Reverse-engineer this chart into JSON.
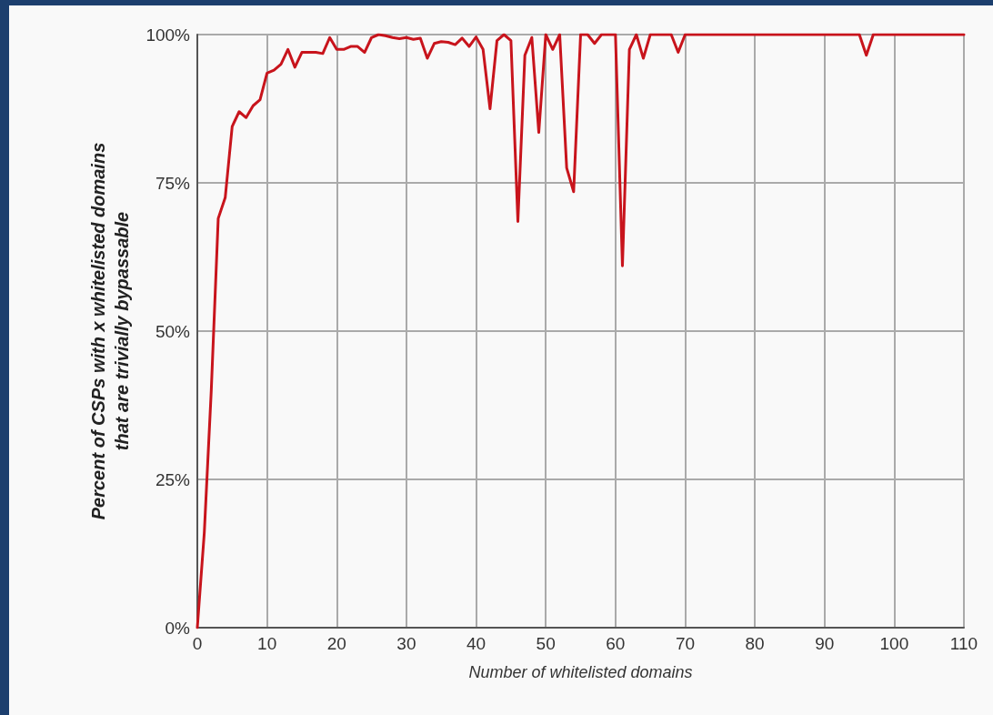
{
  "chart_data": {
    "type": "line",
    "xlabel": "Number of whitelisted domains",
    "ylabel": "Percent of CSPs with x whitelisted domains\nthat are trivially bypassable",
    "x": [
      0,
      1,
      2,
      3,
      4,
      5,
      6,
      7,
      8,
      9,
      10,
      11,
      12,
      13,
      14,
      15,
      16,
      17,
      18,
      19,
      20,
      21,
      22,
      23,
      24,
      25,
      26,
      27,
      28,
      29,
      30,
      31,
      32,
      33,
      34,
      35,
      36,
      37,
      38,
      39,
      40,
      41,
      42,
      43,
      44,
      45,
      46,
      47,
      48,
      49,
      50,
      51,
      52,
      53,
      54,
      55,
      56,
      57,
      58,
      59,
      60,
      61,
      62,
      63,
      64,
      65,
      66,
      67,
      68,
      69,
      70,
      71,
      72,
      73,
      74,
      75,
      76,
      77,
      78,
      79,
      80,
      81,
      82,
      83,
      84,
      85,
      86,
      87,
      88,
      89,
      90,
      91,
      92,
      93,
      94,
      95,
      96,
      97,
      98,
      99,
      100,
      101,
      102,
      103,
      104,
      105,
      106,
      107,
      108,
      109,
      110
    ],
    "series": [
      {
        "color": "#c8141c",
        "values": [
          0,
          16,
          40,
          69,
          72.5,
          84.5,
          87,
          86,
          88,
          89,
          93.5,
          94,
          95,
          97.5,
          94.5,
          97,
          97,
          97,
          96.8,
          99.5,
          97.5,
          97.5,
          98,
          98,
          97,
          99.5,
          100,
          99.8,
          99.5,
          99.3,
          99.5,
          99.2,
          99.4,
          96,
          98.5,
          98.8,
          98.7,
          98.3,
          99.4,
          98,
          99.6,
          97.5,
          87.5,
          99,
          100,
          99,
          68.5,
          96.5,
          99.5,
          83.5,
          100,
          97.5,
          100,
          77.5,
          73.5,
          100,
          100,
          98.5,
          100,
          100,
          100,
          61,
          97.5,
          100,
          96,
          100,
          100,
          100,
          100,
          97,
          100,
          100,
          100,
          100,
          100,
          100,
          100,
          100,
          100,
          100,
          100,
          100,
          100,
          100,
          100,
          100,
          100,
          100,
          100,
          100,
          100,
          100,
          100,
          100,
          100,
          100,
          96.5,
          100,
          100,
          100,
          100,
          100,
          100,
          100,
          100,
          100,
          100,
          100,
          100,
          100,
          100
        ]
      }
    ],
    "xlim": [
      0,
      110
    ],
    "xticks": [
      0,
      10,
      20,
      30,
      40,
      50,
      60,
      70,
      80,
      90,
      100,
      110
    ],
    "ylim": [
      0,
      100
    ],
    "yticks": [
      {
        "value": 0,
        "label": "0%"
      },
      {
        "value": 25,
        "label": "25%"
      },
      {
        "value": 50,
        "label": "50%"
      },
      {
        "value": 75,
        "label": "75%"
      },
      {
        "value": 100,
        "label": "100%"
      }
    ],
    "grid": true,
    "marker": "none",
    "line_style": "solid"
  }
}
